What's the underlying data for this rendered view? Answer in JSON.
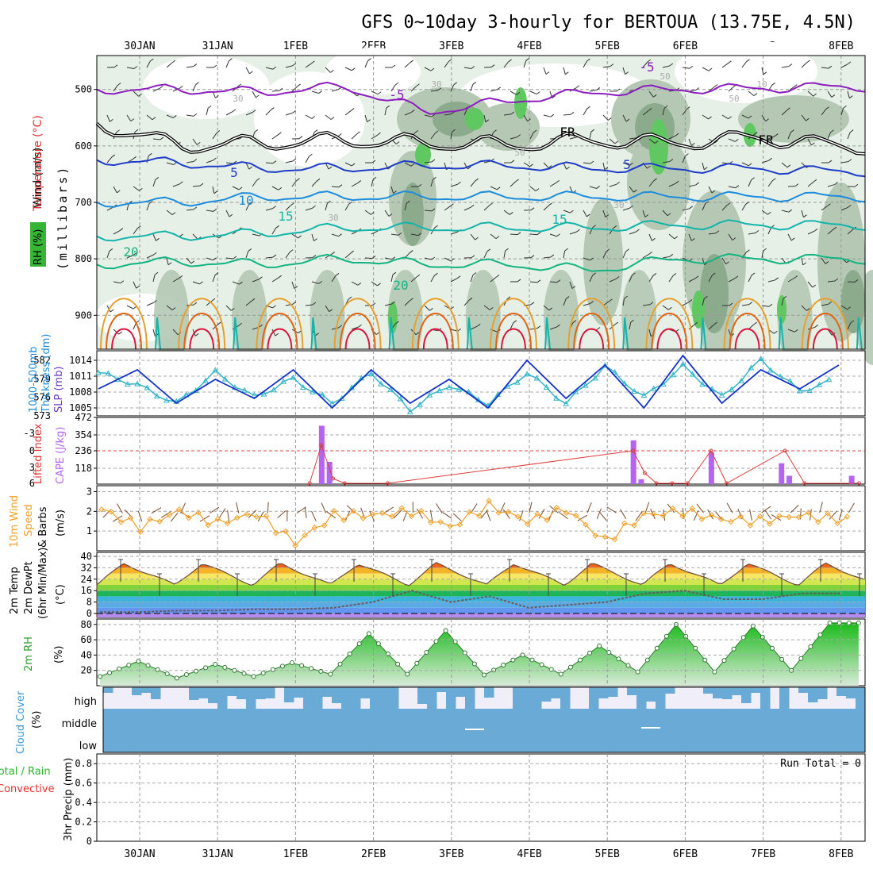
{
  "title": "GFS 0~10day 3-hourly for BERTOUA (13.75E, 4.5N)",
  "date_labels": [
    "30JAN",
    "31JAN",
    "1FEB",
    "2FEB",
    "3FEB",
    "4FEB",
    "5FEB",
    "6FEB",
    "7FEB",
    "8FEB"
  ],
  "colors": {
    "rh_light": "#e6f0e6",
    "rh_mid": "#b4c8b4",
    "rh_dark": "#8caa8c",
    "rh_green": "#60c860",
    "temp_purple": "#8c1ebe",
    "temp_blue": "#1e3cc8",
    "temp_cyan": "#1e8cdc",
    "temp_teal": "#14b4aa",
    "temp_green": "#14b482",
    "temp_orange": "#e6a030",
    "temp_darkorange": "#e06414",
    "temp_red": "#dc143c",
    "slp_line": "#1432c8",
    "thickness_line": "#32b4c8",
    "cape_bar": "#b464f0",
    "li_line": "#dc3c3c",
    "wind_speed": "#f0a028",
    "rh2m": "#2ca02c",
    "cloud": "#6aaad6",
    "cloud_bg": "#f0eef8",
    "rain_label": "#28b428",
    "conv_label": "#e83030"
  },
  "panels": {
    "upper": {
      "y_ticks": [
        "500",
        "600",
        "700",
        "800",
        "900"
      ],
      "ylabel_units": "(millibars)",
      "label_wind": "Wind (m/s)",
      "label_temp": "Temperature (°C)",
      "label_rh": "RH (%)",
      "contour_labels": [
        "-5",
        "-5",
        "FR",
        "FR",
        "5",
        "5",
        "10",
        "15",
        "15",
        "20",
        "20",
        "30",
        "30",
        "30",
        "30",
        "50",
        "50",
        "50",
        "10"
      ]
    },
    "slp": {
      "left_ticks": [
        "582",
        "579",
        "576",
        "573"
      ],
      "right_ticks": [
        "1014",
        "1011",
        "1008",
        "1005",
        "472"
      ],
      "left_label_line1": "1000-500mb",
      "left_label_line2": "Thickness (dm)",
      "right_label": "SLP (mb)"
    },
    "cape": {
      "li_ticks": [
        "-3",
        "0",
        "3",
        "6"
      ],
      "cape_ticks": [
        "354",
        "236",
        "118"
      ],
      "li_label": "Lifted Index",
      "cape_label": "CAPE (J/kg)"
    },
    "wind10": {
      "ticks": [
        "3",
        "2",
        "1"
      ],
      "label_line1": "10m Wind",
      "label_line2": "Speed",
      "label_line3": "& Barbs",
      "units": "(m/s)"
    },
    "temp2m": {
      "ticks": [
        "40",
        "32",
        "24",
        "16",
        "8",
        "0"
      ],
      "label_line1": "2m Temp",
      "label_line2": "2m DewPt",
      "label_line3": "(6hr Min/Max)",
      "units": "(°C)"
    },
    "rh2m": {
      "ticks": [
        "80",
        "60",
        "40",
        "20"
      ],
      "label": "2m RH",
      "units": "(%)"
    },
    "cloud": {
      "levels": [
        "high",
        "middle",
        "low"
      ],
      "label": "Cloud Cover",
      "units": "(%)"
    },
    "precip": {
      "ticks": [
        "0.8",
        "0.6",
        "0.4",
        "0.2",
        "0"
      ],
      "run_total": "Run Total = 0",
      "label_units": "3hr Precip (mm)",
      "label_rain": "Total / Rain",
      "label_conv": "Convective"
    }
  },
  "chart_data": [
    {
      "type": "line",
      "name": "upper-air cross-section (pressure levels, isotherms, RH shading, wind barbs)",
      "x": [
        "30JAN",
        "31JAN",
        "1FEB",
        "2FEB",
        "3FEB",
        "4FEB",
        "5FEB",
        "6FEB",
        "7FEB",
        "8FEB"
      ],
      "ylim": [
        960,
        440
      ],
      "series": [
        {
          "name": "-5",
          "values": [
            500,
            500,
            505,
            495,
            540,
            520,
            505,
            500,
            498,
            495
          ]
        },
        {
          "name": "FR",
          "values": [
            560,
            600,
            595,
            590,
            595,
            598,
            590,
            595,
            585,
            600
          ]
        },
        {
          "name": "5",
          "values": [
            625,
            630,
            640,
            640,
            635,
            635,
            640,
            640,
            640,
            645
          ]
        },
        {
          "name": "10",
          "values": [
            700,
            700,
            690,
            690,
            690,
            690,
            690,
            690,
            690,
            690
          ]
        },
        {
          "name": "15",
          "values": [
            760,
            760,
            755,
            745,
            745,
            745,
            745,
            740,
            740,
            740
          ]
        },
        {
          "name": "20",
          "values": [
            810,
            805,
            810,
            800,
            810,
            810,
            820,
            800,
            800,
            800
          ]
        }
      ]
    },
    {
      "type": "line",
      "name": "SLP (mb) and 1000-500mb Thickness (dm)",
      "x": [
        "30JAN",
        "31JAN",
        "1FEB",
        "2FEB",
        "3FEB",
        "4FEB",
        "5FEB",
        "6FEB",
        "7FEB",
        "8FEB"
      ],
      "series": [
        {
          "name": "SLP (mb)",
          "values": [
            1008,
            1012,
            1005,
            1010,
            1006,
            1012,
            1004,
            1012,
            1005,
            1010,
            1004,
            1014,
            1006,
            1013,
            1004,
            1015,
            1005,
            1012,
            1008,
            1013
          ],
          "x": [
            0,
            0.5,
            1,
            1.5,
            2,
            2.5,
            3,
            3.5,
            4,
            4.5,
            5,
            5.5,
            6,
            6.5,
            7,
            7.5,
            8,
            8.5,
            9,
            9.5
          ]
        },
        {
          "name": "1000-500mb Thickness (dm)",
          "values": [
            580,
            578,
            575,
            580,
            576,
            579,
            575,
            580,
            574,
            578,
            575,
            580,
            575,
            581,
            576,
            581,
            576,
            582,
            577,
            579
          ],
          "x": [
            0,
            0.5,
            1,
            1.5,
            2,
            2.5,
            3,
            3.5,
            4,
            4.5,
            5,
            5.5,
            6,
            6.5,
            7,
            7.5,
            8,
            8.5,
            9,
            9.5
          ]
        }
      ]
    },
    {
      "type": "bar",
      "name": "CAPE (J/kg) and Lifted Index",
      "cape_bars": [
        {
          "x": 3.4,
          "value": 420
        },
        {
          "x": 3.5,
          "value": 160
        },
        {
          "x": 7.4,
          "value": 315
        },
        {
          "x": 7.5,
          "value": 35
        },
        {
          "x": 8.4,
          "value": 230
        },
        {
          "x": 9.3,
          "value": 150
        },
        {
          "x": 9.4,
          "value": 60
        },
        {
          "x": 10.2,
          "value": 60
        }
      ],
      "li_points": [
        {
          "x": 3.25,
          "value": 6
        },
        {
          "x": 3.4,
          "value": -0.5
        },
        {
          "x": 3.55,
          "value": 2.5
        },
        {
          "x": 3.7,
          "value": 6
        },
        {
          "x": 4.25,
          "value": 5
        },
        {
          "x": 7.4,
          "value": 0
        },
        {
          "x": 7.55,
          "value": 2
        },
        {
          "x": 7.7,
          "value": 3
        },
        {
          "x": 7.9,
          "value": 3
        },
        {
          "x": 8.1,
          "value": 4
        },
        {
          "x": 8.4,
          "value": 0
        },
        {
          "x": 8.6,
          "value": 4
        },
        {
          "x": 9.35,
          "value": 0
        },
        {
          "x": 9.6,
          "value": 5
        },
        {
          "x": 10.3,
          "value": 5
        }
      ]
    },
    {
      "type": "line",
      "name": "10m Wind Speed (m/s)",
      "x": [
        0,
        0.5,
        1,
        1.5,
        2,
        2.5,
        3,
        3.5,
        4,
        4.5,
        5,
        5.5,
        6,
        6.5,
        7,
        7.5,
        8,
        8.5,
        9,
        9.5
      ],
      "values": [
        2.1,
        1.2,
        2.0,
        1.4,
        1.9,
        0.4,
        1.8,
        1.8,
        2.0,
        1.2,
        2.3,
        1.5,
        2.1,
        0.5,
        1.8,
        2.0,
        1.6,
        1.5,
        1.8,
        1.6
      ],
      "ylim": [
        0,
        3.3
      ]
    },
    {
      "type": "area",
      "name": "2m Temp and DewPt (°C)",
      "x": [
        0,
        0.5,
        1,
        1.5,
        2,
        2.5,
        3,
        3.5,
        4,
        4.5,
        5,
        5.5,
        6,
        6.5,
        7,
        7.5,
        8,
        8.5,
        9,
        9.5
      ],
      "temp": [
        34,
        20,
        35,
        20,
        35,
        20,
        35,
        21,
        36,
        21,
        36,
        21,
        36,
        21,
        36,
        21,
        36,
        21,
        36,
        20
      ],
      "dewpt": [
        1,
        1,
        2,
        2,
        3,
        3,
        4,
        8,
        16,
        8,
        12,
        4,
        6,
        8,
        14,
        16,
        10,
        10,
        14,
        14
      ],
      "ylim": [
        -4,
        41
      ]
    },
    {
      "type": "area",
      "name": "2m RH (%)",
      "x": [
        0,
        0.5,
        1,
        1.5,
        2,
        2.5,
        3,
        3.5,
        4,
        4.5,
        5,
        5.5,
        6,
        6.5,
        7,
        7.5,
        8,
        8.5,
        9,
        9.5
      ],
      "values": [
        12,
        32,
        10,
        28,
        12,
        30,
        15,
        68,
        15,
        72,
        14,
        40,
        15,
        52,
        18,
        80,
        18,
        78,
        20,
        82
      ],
      "ylim": [
        0,
        85
      ]
    },
    {
      "type": "bar",
      "name": "Cloud Cover (%)",
      "levels": [
        "high",
        "middle",
        "low"
      ],
      "note_high": "high-level cloud mostly complete with frequent gaps",
      "middle": 100,
      "low": 100
    },
    {
      "type": "bar",
      "name": "3hr Precip (mm)",
      "values": [],
      "ylim": [
        0,
        0.9
      ]
    }
  ]
}
